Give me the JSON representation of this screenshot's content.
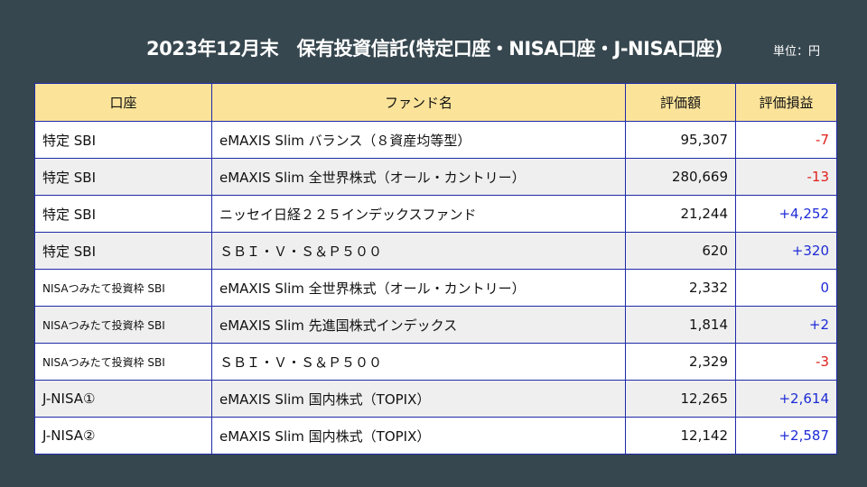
{
  "header": {
    "title": "2023年12月末　保有投資信託(特定口座・NISA口座・J-NISA口座)",
    "unit": "単位：円"
  },
  "table": {
    "columns": [
      "口座",
      "ファンド名",
      "評価額",
      "評価損益"
    ],
    "rows": [
      {
        "account": "特定 SBI",
        "fund": "eMAXIS Slim バランス（８資産均等型）",
        "value": "95,307",
        "pl": "-7",
        "sign": "neg"
      },
      {
        "account": "特定 SBI",
        "fund": "eMAXIS Slim 全世界株式（オール・カントリー）",
        "value": "280,669",
        "pl": "-13",
        "sign": "neg"
      },
      {
        "account": "特定 SBI",
        "fund": "ニッセイ日経２２５インデックスファンド",
        "value": "21,244",
        "pl": "+4,252",
        "sign": "pos"
      },
      {
        "account": "特定 SBI",
        "fund": "ＳＢＩ・Ｖ・Ｓ＆Ｐ５００",
        "value": "620",
        "pl": "+320",
        "sign": "pos"
      },
      {
        "account": "NISAつみたて投資枠 SBI",
        "fund": "eMAXIS Slim 全世界株式（オール・カントリー）",
        "value": "2,332",
        "pl": "0",
        "sign": "pos"
      },
      {
        "account": "NISAつみたて投資枠 SBI",
        "fund": "eMAXIS Slim 先進国株式インデックス",
        "value": "1,814",
        "pl": "+2",
        "sign": "pos"
      },
      {
        "account": "NISAつみたて投資枠 SBI",
        "fund": "ＳＢＩ・Ｖ・Ｓ＆Ｐ５００",
        "value": "2,329",
        "pl": "-3",
        "sign": "neg"
      },
      {
        "account": "J-NISA①",
        "fund": "eMAXIS Slim 国内株式（TOPIX）",
        "value": "12,265",
        "pl": "+2,614",
        "sign": "pos"
      },
      {
        "account": "J-NISA②",
        "fund": "eMAXIS Slim 国内株式（TOPIX）",
        "value": "12,142",
        "pl": "+2,587",
        "sign": "pos"
      }
    ]
  },
  "colors": {
    "background": "#37474f",
    "header_fill": "#fbe39a",
    "border": "#1f2aa8",
    "negative": "#e0201b",
    "positive": "#1d2bd6"
  }
}
